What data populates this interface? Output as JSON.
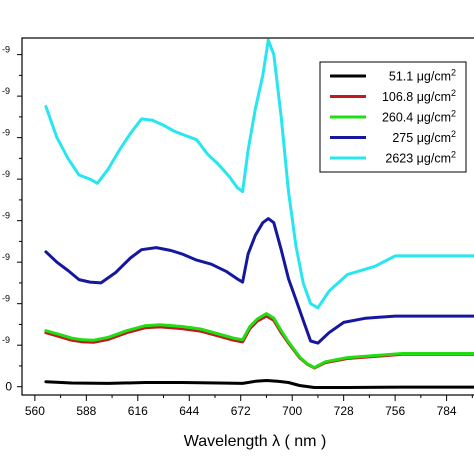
{
  "chart_data": {
    "type": "line",
    "title": "",
    "xlabel": "Wavelength λ ( nm )",
    "ylabel": "",
    "xlim": [
      553,
      800
    ],
    "ylim": [
      -0.2,
      8.4
    ],
    "xticks": [
      560,
      588,
      616,
      644,
      672,
      700,
      728,
      756,
      784
    ],
    "y_tick_labels": [
      "0",
      "-9",
      "-9",
      "-9",
      "-9",
      "-9",
      "-9",
      "-9",
      "-9"
    ],
    "y_tick_values": [
      0,
      1,
      2,
      3,
      4,
      5,
      6,
      7,
      8
    ],
    "grid": false,
    "legend_position": "top-right",
    "series": [
      {
        "name": "51.1 μg/cm",
        "name_sup": "2",
        "color": "#000000",
        "points": [
          [
            566,
            0.12
          ],
          [
            580,
            0.09
          ],
          [
            600,
            0.08
          ],
          [
            620,
            0.1
          ],
          [
            640,
            0.1
          ],
          [
            660,
            0.09
          ],
          [
            673,
            0.08
          ],
          [
            680,
            0.13
          ],
          [
            686,
            0.15
          ],
          [
            692,
            0.13
          ],
          [
            698,
            0.1
          ],
          [
            704,
            0.03
          ],
          [
            712,
            -0.02
          ],
          [
            730,
            -0.02
          ],
          [
            760,
            -0.01
          ],
          [
            800,
            -0.01
          ]
        ]
      },
      {
        "name": "106.8 μg/cm",
        "name_sup": "2",
        "color": "#c0191e",
        "points": [
          [
            566,
            1.3
          ],
          [
            574,
            1.2
          ],
          [
            580,
            1.12
          ],
          [
            586,
            1.08
          ],
          [
            592,
            1.07
          ],
          [
            600,
            1.14
          ],
          [
            610,
            1.3
          ],
          [
            620,
            1.42
          ],
          [
            628,
            1.44
          ],
          [
            640,
            1.4
          ],
          [
            650,
            1.34
          ],
          [
            660,
            1.22
          ],
          [
            668,
            1.12
          ],
          [
            673,
            1.08
          ],
          [
            677,
            1.4
          ],
          [
            681,
            1.58
          ],
          [
            686,
            1.7
          ],
          [
            690,
            1.6
          ],
          [
            694,
            1.3
          ],
          [
            698,
            1.05
          ],
          [
            704,
            0.7
          ],
          [
            708,
            0.55
          ],
          [
            712,
            0.45
          ],
          [
            718,
            0.58
          ],
          [
            730,
            0.68
          ],
          [
            760,
            0.78
          ],
          [
            800,
            0.78
          ]
        ]
      },
      {
        "name": "260.4 μg/cm",
        "name_sup": "2",
        "color": "#22dd12",
        "points": [
          [
            566,
            1.35
          ],
          [
            574,
            1.25
          ],
          [
            580,
            1.17
          ],
          [
            586,
            1.13
          ],
          [
            592,
            1.12
          ],
          [
            600,
            1.19
          ],
          [
            610,
            1.35
          ],
          [
            620,
            1.47
          ],
          [
            628,
            1.49
          ],
          [
            640,
            1.45
          ],
          [
            650,
            1.39
          ],
          [
            660,
            1.27
          ],
          [
            668,
            1.17
          ],
          [
            673,
            1.13
          ],
          [
            677,
            1.45
          ],
          [
            681,
            1.63
          ],
          [
            686,
            1.76
          ],
          [
            690,
            1.65
          ],
          [
            694,
            1.35
          ],
          [
            698,
            1.08
          ],
          [
            704,
            0.72
          ],
          [
            708,
            0.56
          ],
          [
            712,
            0.46
          ],
          [
            718,
            0.6
          ],
          [
            730,
            0.7
          ],
          [
            760,
            0.8
          ],
          [
            800,
            0.8
          ]
        ]
      },
      {
        "name": "275 μg/cm",
        "name_sup": "2",
        "color": "#16179f",
        "points": [
          [
            566,
            3.25
          ],
          [
            572,
            3.0
          ],
          [
            578,
            2.8
          ],
          [
            584,
            2.58
          ],
          [
            590,
            2.52
          ],
          [
            596,
            2.5
          ],
          [
            604,
            2.75
          ],
          [
            612,
            3.1
          ],
          [
            618,
            3.3
          ],
          [
            626,
            3.35
          ],
          [
            634,
            3.28
          ],
          [
            640,
            3.2
          ],
          [
            648,
            3.05
          ],
          [
            656,
            2.95
          ],
          [
            664,
            2.78
          ],
          [
            670,
            2.6
          ],
          [
            673,
            2.52
          ],
          [
            676,
            3.2
          ],
          [
            680,
            3.65
          ],
          [
            684,
            3.95
          ],
          [
            687,
            4.05
          ],
          [
            690,
            3.95
          ],
          [
            694,
            3.3
          ],
          [
            698,
            2.6
          ],
          [
            702,
            2.1
          ],
          [
            706,
            1.6
          ],
          [
            710,
            1.1
          ],
          [
            714,
            1.05
          ],
          [
            720,
            1.3
          ],
          [
            728,
            1.55
          ],
          [
            740,
            1.65
          ],
          [
            756,
            1.7
          ],
          [
            770,
            1.7
          ],
          [
            800,
            1.7
          ]
        ]
      },
      {
        "name": "2623 μg/cm",
        "name_sup": "2",
        "color": "#28e6f0",
        "points": [
          [
            566,
            6.75
          ],
          [
            572,
            6.0
          ],
          [
            578,
            5.5
          ],
          [
            584,
            5.1
          ],
          [
            590,
            5.0
          ],
          [
            594,
            4.9
          ],
          [
            600,
            5.25
          ],
          [
            606,
            5.7
          ],
          [
            612,
            6.1
          ],
          [
            618,
            6.45
          ],
          [
            624,
            6.42
          ],
          [
            630,
            6.3
          ],
          [
            636,
            6.15
          ],
          [
            642,
            6.05
          ],
          [
            648,
            5.95
          ],
          [
            654,
            5.6
          ],
          [
            660,
            5.35
          ],
          [
            666,
            5.05
          ],
          [
            670,
            4.8
          ],
          [
            673,
            4.7
          ],
          [
            676,
            5.7
          ],
          [
            680,
            6.7
          ],
          [
            684,
            7.5
          ],
          [
            687,
            8.35
          ],
          [
            690,
            8.0
          ],
          [
            694,
            6.5
          ],
          [
            698,
            4.7
          ],
          [
            702,
            3.4
          ],
          [
            706,
            2.5
          ],
          [
            710,
            2.0
          ],
          [
            714,
            1.9
          ],
          [
            720,
            2.3
          ],
          [
            730,
            2.7
          ],
          [
            745,
            2.9
          ],
          [
            756,
            3.15
          ],
          [
            770,
            3.15
          ],
          [
            800,
            3.15
          ]
        ]
      }
    ]
  }
}
